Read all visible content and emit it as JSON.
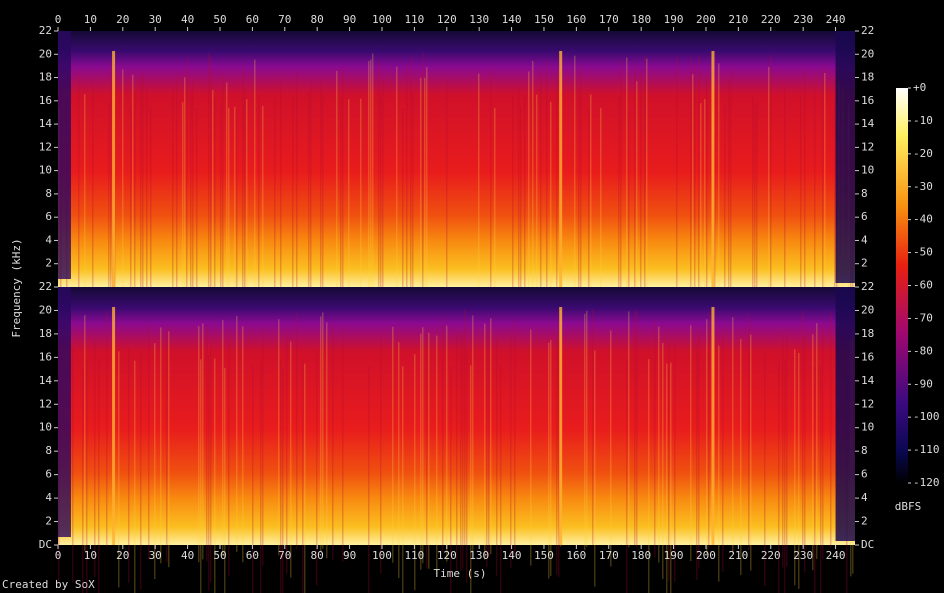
{
  "chart_data": {
    "type": "spectrogram",
    "xlabel": "Time (s)",
    "ylabel": "Frequency (kHz)",
    "xlim": [
      0,
      246
    ],
    "xticks": [
      0,
      10,
      20,
      30,
      40,
      50,
      60,
      70,
      80,
      90,
      100,
      110,
      120,
      130,
      140,
      150,
      160,
      170,
      180,
      190,
      200,
      210,
      220,
      230,
      240
    ],
    "channels": [
      {
        "ylim": [
          0,
          22
        ],
        "yticks": [
          2,
          4,
          6,
          8,
          10,
          12,
          14,
          16,
          18,
          20,
          22
        ]
      },
      {
        "ylim": [
          0,
          22
        ],
        "yticks": [
          {
            "value": 0,
            "label": "DC"
          },
          2,
          4,
          6,
          8,
          10,
          12,
          14,
          16,
          18,
          20,
          22
        ]
      }
    ],
    "colorbar": {
      "label": "dBFS",
      "lim": [
        -120,
        0
      ],
      "ticks": [
        {
          "value": 0,
          "label": "+0"
        },
        -10,
        -20,
        -30,
        -40,
        -50,
        -60,
        -70,
        -80,
        -90,
        -100,
        -110,
        -120
      ]
    }
  },
  "credit": "Created by SoX"
}
